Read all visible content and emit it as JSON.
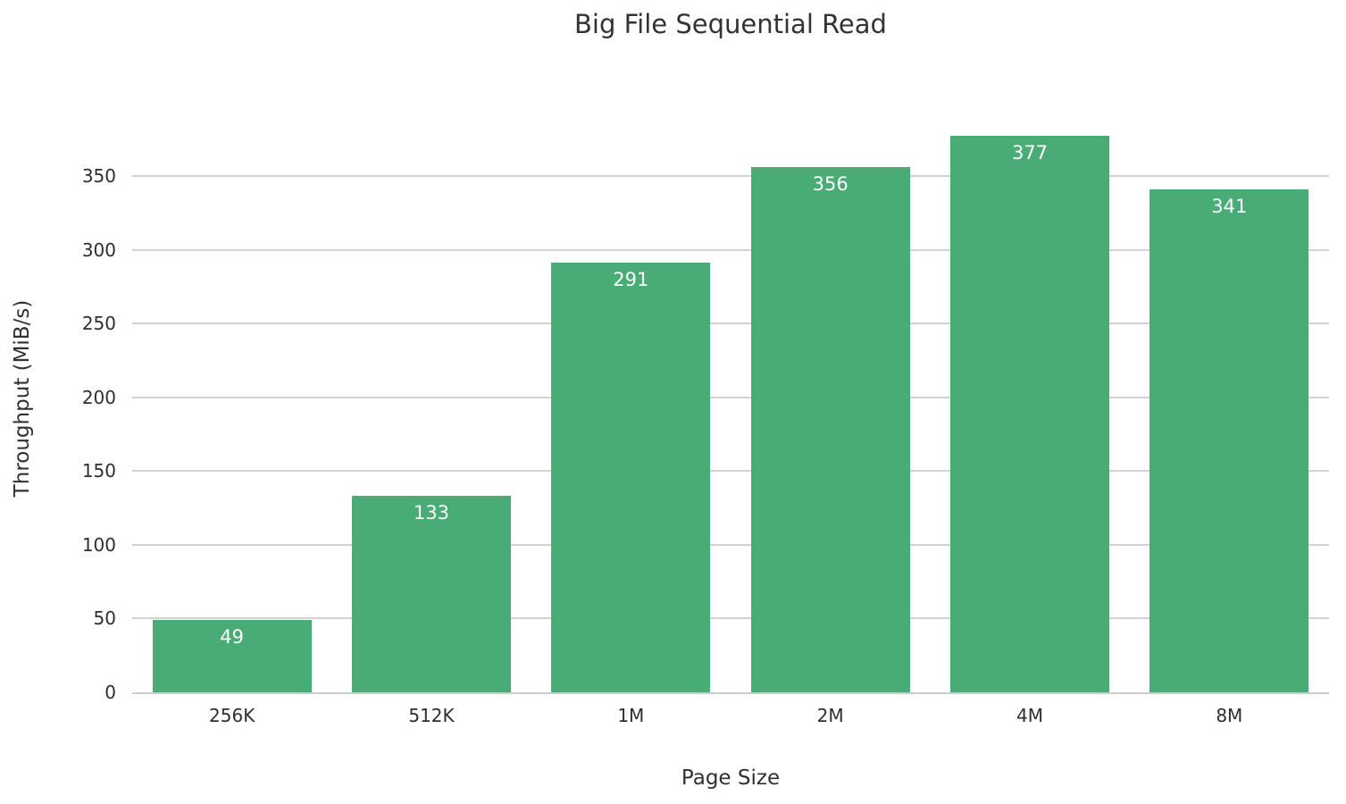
{
  "chart_data": {
    "type": "bar",
    "title": "Big File Sequential Read",
    "xlabel": "Page Size",
    "ylabel": "Throughput (MiB/s)",
    "categories": [
      "256K",
      "512K",
      "1M",
      "2M",
      "4M",
      "8M"
    ],
    "values": [
      49,
      133,
      291,
      356,
      377,
      341
    ],
    "bar_labels": [
      "49",
      "133",
      "291",
      "356",
      "377",
      "341"
    ],
    "yticks": [
      0,
      50,
      100,
      150,
      200,
      250,
      300,
      350
    ],
    "ylim": [
      0,
      400
    ],
    "grid": true,
    "legend": false,
    "colors": {
      "bar": "#49ab76",
      "bar_label": "#ffffff",
      "grid": "#d2d2d2",
      "baseline": "#cccccc",
      "tick_text": "#2e2e2e",
      "title_text": "#333333"
    }
  }
}
